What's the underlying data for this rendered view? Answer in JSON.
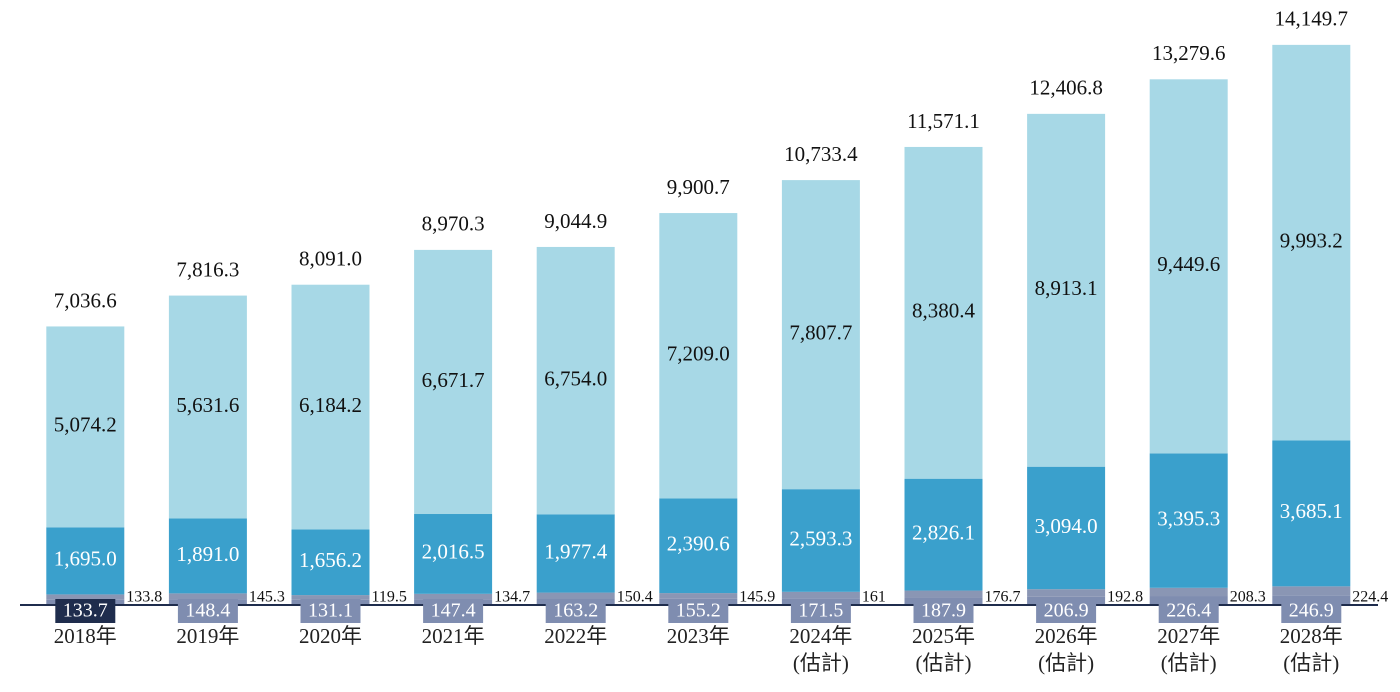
{
  "chart_data": {
    "type": "stacked_bar",
    "categories": [
      "2018年",
      "2019年",
      "2020年",
      "2021年",
      "2022年",
      "2023年",
      "2024年\n(估計)",
      "2025年\n(估計)",
      "2026年\n(估計)",
      "2027年\n(估計)",
      "2028年\n(估計)"
    ],
    "series": [
      {
        "color": "#7f8db0",
        "values": [
          133.7,
          148.4,
          131.1,
          147.4,
          163.2,
          155.2,
          171.5,
          187.9,
          206.9,
          226.4,
          246.9
        ]
      },
      {
        "color": "#8a96b4",
        "values": [
          133.8,
          145.3,
          119.5,
          134.7,
          150.4,
          145.9,
          161.0,
          176.7,
          192.8,
          208.3,
          224.4
        ]
      },
      {
        "color": "#3aa0cc",
        "values": [
          1695.0,
          1891.0,
          1656.2,
          2016.5,
          1977.4,
          2390.6,
          2593.3,
          2826.1,
          3094.0,
          3395.3,
          3685.1
        ],
        "value_labels": [
          "1,695.0",
          "1,891.0",
          "1,656.2",
          "2,016.5",
          "1,977.4",
          "2,390.6",
          "2,593.3",
          "2,826.1",
          "3,094.0",
          "3,395.3",
          "3,685.1"
        ]
      },
      {
        "color": "#a7d8e6",
        "values": [
          5074.2,
          5631.6,
          6184.2,
          6671.7,
          6754.0,
          7209.0,
          7807.7,
          8380.4,
          8913.1,
          9449.6,
          9993.2
        ],
        "value_labels": [
          "5,074.2",
          "5,631.6",
          "6,184.2",
          "6,671.7",
          "6,754.0",
          "7,209.0",
          "7,807.7",
          "8,380.4",
          "8,913.1",
          "9,449.6",
          "9,993.2"
        ]
      }
    ],
    "totals": {
      "values": [
        7036.6,
        7816.3,
        8091.0,
        8970.3,
        9044.9,
        9900.7,
        10733.4,
        11571.1,
        12406.8,
        13279.6,
        14149.7
      ],
      "value_labels": [
        "7,036.6",
        "7,816.3",
        "8,091.0",
        "8,970.3",
        "9,044.9",
        "9,900.7",
        "10,733.4",
        "11,571.1",
        "12,406.8",
        "13,279.6",
        "14,149.7"
      ]
    },
    "ylim": [
      0,
      14500
    ]
  }
}
